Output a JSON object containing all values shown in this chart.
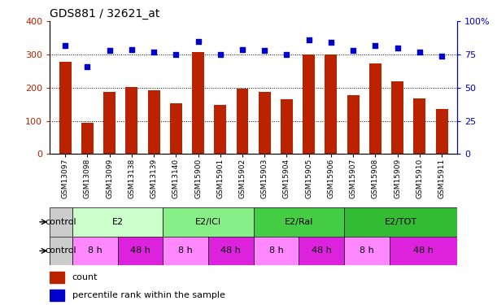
{
  "title": "GDS881 / 32621_at",
  "samples": [
    "GSM13097",
    "GSM13098",
    "GSM13099",
    "GSM13138",
    "GSM13139",
    "GSM13140",
    "GSM15900",
    "GSM15901",
    "GSM15902",
    "GSM15903",
    "GSM15904",
    "GSM15905",
    "GSM15906",
    "GSM15907",
    "GSM15908",
    "GSM15909",
    "GSM15910",
    "GSM15911"
  ],
  "counts": [
    278,
    93,
    188,
    203,
    192,
    152,
    308,
    147,
    198,
    188,
    165,
    300,
    300,
    178,
    272,
    218,
    168,
    135
  ],
  "percentiles": [
    82,
    66,
    78,
    79,
    77,
    75,
    85,
    75,
    79,
    78,
    75,
    86,
    84,
    78,
    82,
    80,
    77,
    74
  ],
  "ylim_left": [
    0,
    400
  ],
  "ylim_right": [
    0,
    100
  ],
  "yticks_left": [
    0,
    100,
    200,
    300,
    400
  ],
  "yticks_right": [
    0,
    25,
    50,
    75,
    100
  ],
  "hlines": [
    100,
    200,
    300
  ],
  "bar_color": "#bb2200",
  "dot_color": "#0000cc",
  "agent_groups": [
    {
      "label": "control",
      "start": 0,
      "end": 1,
      "color": "#cccccc"
    },
    {
      "label": "E2",
      "start": 1,
      "end": 5,
      "color": "#ccffcc"
    },
    {
      "label": "E2/ICI",
      "start": 5,
      "end": 9,
      "color": "#88ee88"
    },
    {
      "label": "E2/Ral",
      "start": 9,
      "end": 13,
      "color": "#44cc44"
    },
    {
      "label": "E2/TOT",
      "start": 13,
      "end": 18,
      "color": "#33bb33"
    }
  ],
  "time_groups": [
    {
      "label": "control",
      "start": 0,
      "end": 1,
      "color": "#cccccc"
    },
    {
      "label": "8 h",
      "start": 1,
      "end": 3,
      "color": "#ff88ff"
    },
    {
      "label": "48 h",
      "start": 3,
      "end": 5,
      "color": "#dd22dd"
    },
    {
      "label": "8 h",
      "start": 5,
      "end": 7,
      "color": "#ff88ff"
    },
    {
      "label": "48 h",
      "start": 7,
      "end": 9,
      "color": "#dd22dd"
    },
    {
      "label": "8 h",
      "start": 9,
      "end": 11,
      "color": "#ff88ff"
    },
    {
      "label": "48 h",
      "start": 11,
      "end": 13,
      "color": "#dd22dd"
    },
    {
      "label": "8 h",
      "start": 13,
      "end": 15,
      "color": "#ff88ff"
    },
    {
      "label": "48 h",
      "start": 15,
      "end": 18,
      "color": "#dd22dd"
    }
  ],
  "legend": [
    {
      "label": "count",
      "color": "#bb2200"
    },
    {
      "label": "percentile rank within the sample",
      "color": "#0000cc"
    }
  ],
  "fig_width": 6.11,
  "fig_height": 3.75,
  "dpi": 100
}
